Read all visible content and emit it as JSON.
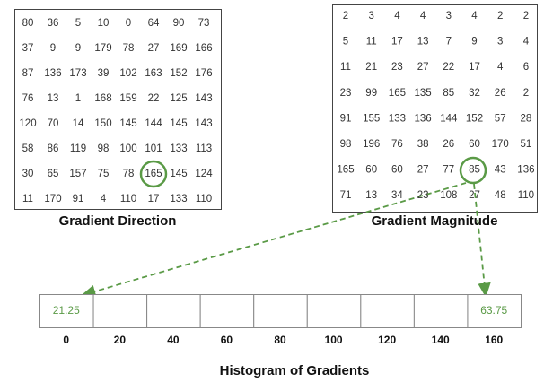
{
  "gradient_direction": {
    "label": "Gradient Direction",
    "rows": [
      [
        80,
        36,
        5,
        10,
        0,
        64,
        90,
        73
      ],
      [
        37,
        9,
        9,
        179,
        78,
        27,
        169,
        166
      ],
      [
        87,
        136,
        173,
        39,
        102,
        163,
        152,
        176
      ],
      [
        76,
        13,
        1,
        168,
        159,
        22,
        125,
        143
      ],
      [
        120,
        70,
        14,
        150,
        145,
        144,
        145,
        143
      ],
      [
        58,
        86,
        119,
        98,
        100,
        101,
        133,
        113
      ],
      [
        30,
        65,
        157,
        75,
        78,
        165,
        145,
        124
      ],
      [
        11,
        170,
        91,
        4,
        110,
        17,
        133,
        110
      ]
    ]
  },
  "gradient_magnitude": {
    "label": "Gradient Magnitude",
    "rows": [
      [
        2,
        3,
        4,
        4,
        3,
        4,
        2,
        2
      ],
      [
        5,
        11,
        17,
        13,
        7,
        9,
        3,
        4
      ],
      [
        11,
        21,
        23,
        27,
        22,
        17,
        4,
        6
      ],
      [
        23,
        99,
        165,
        135,
        85,
        32,
        26,
        2
      ],
      [
        91,
        155,
        133,
        136,
        144,
        152,
        57,
        28
      ],
      [
        98,
        196,
        76,
        38,
        26,
        60,
        170,
        51
      ],
      [
        165,
        60,
        60,
        27,
        77,
        85,
        43,
        136
      ],
      [
        71,
        13,
        34,
        23,
        108,
        27,
        48,
        110
      ]
    ]
  },
  "histogram": {
    "label": "Histogram of Gradients",
    "bins": [
      0,
      20,
      40,
      60,
      80,
      100,
      120,
      140,
      160
    ],
    "values": [
      21.25,
      null,
      null,
      null,
      null,
      null,
      null,
      null,
      63.75
    ]
  }
}
